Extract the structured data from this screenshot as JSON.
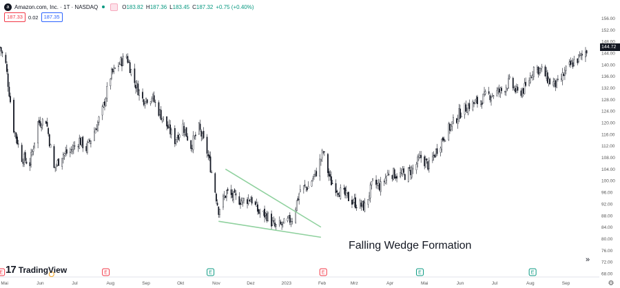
{
  "header": {
    "symbol_line": "Amazon.com, Inc. · 1T · NASDAQ",
    "ohlc": [
      {
        "label": "O",
        "value": "183.82"
      },
      {
        "label": "H",
        "value": "187.36"
      },
      {
        "label": "L",
        "value": "183.45"
      },
      {
        "label": "C",
        "value": "187.32"
      },
      {
        "label": "",
        "value": "+0.75 (+0.40%)"
      }
    ],
    "sell_price": "187.33",
    "spread": "0.02",
    "buy_price": "187.35",
    "positive_color": "#089981",
    "negative_color": "#f23645"
  },
  "branding": {
    "mark": "17",
    "name": "TradingView"
  },
  "controls": {
    "scroll_icon": "double-chevron-right-icon",
    "settings_icon": "gear-icon"
  },
  "annotation": "Falling Wedge Formation",
  "current_price_label": "144.72",
  "chart_data": {
    "type": "candlestick",
    "title": "",
    "xlabel": "",
    "ylabel": "",
    "ylim": [
      68,
      158
    ],
    "y_ticks": [
      156,
      152,
      148,
      144,
      140,
      136,
      132,
      128,
      124,
      120,
      116,
      112,
      108,
      104,
      100,
      96,
      92,
      88,
      84,
      80,
      76,
      72,
      68
    ],
    "y_tick_labels": [
      "156.00",
      "152.00",
      "148.00",
      "144.00",
      "140.00",
      "136.00",
      "132.00",
      "128.00",
      "124.00",
      "120.00",
      "116.00",
      "112.00",
      "108.00",
      "104.00",
      "100.00",
      "96.00",
      "92.00",
      "88.00",
      "84.00",
      "80.00",
      "76.00",
      "72.00",
      "68.00"
    ],
    "x_range": [
      "2022-04-27",
      "2023-09-30"
    ],
    "x_ticks": [
      {
        "date": "2022-05-01",
        "label": "Mai"
      },
      {
        "date": "2022-06-01",
        "label": "Jun"
      },
      {
        "date": "2022-07-01",
        "label": "Jul"
      },
      {
        "date": "2022-08-01",
        "label": "Aug"
      },
      {
        "date": "2022-09-01",
        "label": "Sep"
      },
      {
        "date": "2022-10-01",
        "label": "Okt"
      },
      {
        "date": "2022-11-01",
        "label": "Nov"
      },
      {
        "date": "2022-12-01",
        "label": "Dez"
      },
      {
        "date": "2023-01-01",
        "label": "2023"
      },
      {
        "date": "2023-02-01",
        "label": "Feb"
      },
      {
        "date": "2023-03-01",
        "label": "Mrz"
      },
      {
        "date": "2023-04-01",
        "label": "Apr"
      },
      {
        "date": "2023-05-01",
        "label": "Mai"
      },
      {
        "date": "2023-06-01",
        "label": "Jun"
      },
      {
        "date": "2023-07-01",
        "label": "Jul"
      },
      {
        "date": "2023-08-01",
        "label": "Aug"
      },
      {
        "date": "2023-09-01",
        "label": "Sep"
      }
    ],
    "price_path": [
      [
        "2022-04-27",
        146
      ],
      [
        "2022-05-02",
        140
      ],
      [
        "2022-05-09",
        118
      ],
      [
        "2022-05-16",
        108
      ],
      [
        "2022-05-23",
        106
      ],
      [
        "2022-05-30",
        120
      ],
      [
        "2022-06-06",
        121
      ],
      [
        "2022-06-13",
        104
      ],
      [
        "2022-06-20",
        109
      ],
      [
        "2022-06-27",
        110
      ],
      [
        "2022-07-05",
        114
      ],
      [
        "2022-07-11",
        111
      ],
      [
        "2022-07-18",
        117
      ],
      [
        "2022-07-25",
        124
      ],
      [
        "2022-08-01",
        136
      ],
      [
        "2022-08-08",
        140
      ],
      [
        "2022-08-15",
        143
      ],
      [
        "2022-08-22",
        134
      ],
      [
        "2022-08-29",
        128
      ],
      [
        "2022-09-06",
        129
      ],
      [
        "2022-09-12",
        124
      ],
      [
        "2022-09-19",
        119
      ],
      [
        "2022-09-26",
        114
      ],
      [
        "2022-10-03",
        119
      ],
      [
        "2022-10-10",
        112
      ],
      [
        "2022-10-17",
        118
      ],
      [
        "2022-10-24",
        110
      ],
      [
        "2022-10-28",
        103
      ],
      [
        "2022-11-03",
        90
      ],
      [
        "2022-11-10",
        96
      ],
      [
        "2022-11-17",
        94
      ],
      [
        "2022-11-24",
        93
      ],
      [
        "2022-12-01",
        94
      ],
      [
        "2022-12-08",
        89
      ],
      [
        "2022-12-15",
        88
      ],
      [
        "2022-12-22",
        84
      ],
      [
        "2022-12-30",
        85
      ],
      [
        "2023-01-06",
        87
      ],
      [
        "2023-01-13",
        97
      ],
      [
        "2023-01-20",
        98
      ],
      [
        "2023-01-27",
        103
      ],
      [
        "2023-02-02",
        110
      ],
      [
        "2023-02-08",
        100
      ],
      [
        "2023-02-17",
        96
      ],
      [
        "2023-02-24",
        94
      ],
      [
        "2023-03-03",
        92
      ],
      [
        "2023-03-10",
        91
      ],
      [
        "2023-03-17",
        99
      ],
      [
        "2023-03-24",
        98
      ],
      [
        "2023-03-31",
        103
      ],
      [
        "2023-04-07",
        102
      ],
      [
        "2023-04-14",
        102
      ],
      [
        "2023-04-21",
        104
      ],
      [
        "2023-04-28",
        108
      ],
      [
        "2023-05-05",
        105
      ],
      [
        "2023-05-12",
        111
      ],
      [
        "2023-05-19",
        116
      ],
      [
        "2023-05-26",
        120
      ],
      [
        "2023-06-02",
        124
      ],
      [
        "2023-06-09",
        126
      ],
      [
        "2023-06-16",
        127
      ],
      [
        "2023-06-23",
        129
      ],
      [
        "2023-06-30",
        130
      ],
      [
        "2023-07-07",
        131
      ],
      [
        "2023-07-14",
        134
      ],
      [
        "2023-07-21",
        130
      ],
      [
        "2023-07-28",
        132
      ],
      [
        "2023-08-04",
        139
      ],
      [
        "2023-08-11",
        138
      ],
      [
        "2023-08-18",
        134
      ],
      [
        "2023-08-25",
        133
      ],
      [
        "2023-09-01",
        138
      ],
      [
        "2023-09-08",
        141
      ],
      [
        "2023-09-15",
        143
      ],
      [
        "2023-09-19",
        145
      ]
    ],
    "wedge_lines": [
      {
        "from": [
          "2022-11-09",
          104
        ],
        "to": [
          "2023-01-31",
          84
        ]
      },
      {
        "from": [
          "2022-11-03",
          86
        ],
        "to": [
          "2023-01-31",
          80.5
        ]
      }
    ],
    "earnings_markers": [
      {
        "date": "2022-04-28",
        "color": "#f23645"
      },
      {
        "date": "2022-07-28",
        "color": "#f23645"
      },
      {
        "date": "2022-10-27",
        "color": "#089981"
      },
      {
        "date": "2023-02-02",
        "color": "#f23645"
      },
      {
        "date": "2023-04-27",
        "color": "#089981"
      },
      {
        "date": "2023-08-03",
        "color": "#089981"
      }
    ],
    "earnings_label": "E",
    "dividend_marker": {
      "date": "2022-06-06",
      "color": "#f5a623"
    },
    "wedge_color": "#8fd19e",
    "grid": false
  }
}
